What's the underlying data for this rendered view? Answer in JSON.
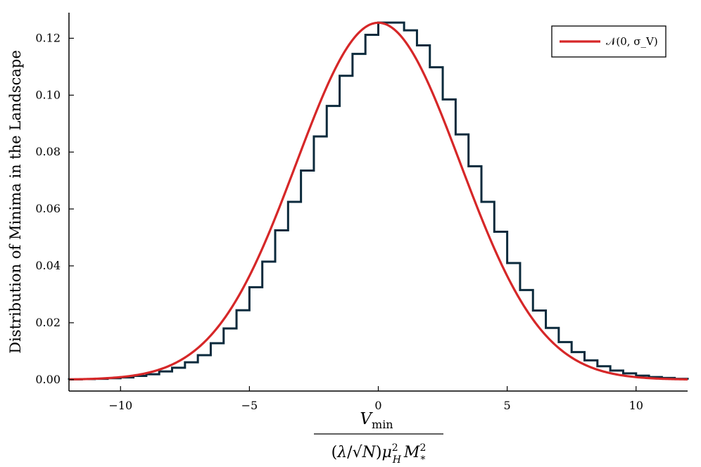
{
  "chart_data": {
    "type": "histogram",
    "title": "",
    "ylabel": "Distribution of Minima in the Landscape",
    "xlabel_numerator": "Vmin",
    "xlabel_denominator": "(λ/√N)μH² M*²",
    "xlim": [
      -12,
      12
    ],
    "ylim": [
      -0.004,
      0.129
    ],
    "x_ticks": [
      -10,
      -5,
      0,
      5,
      10
    ],
    "x_tick_labels": [
      "−10",
      "−5",
      "0",
      "5",
      "10"
    ],
    "y_ticks": [
      0.0,
      0.02,
      0.04,
      0.06,
      0.08,
      0.1,
      0.12
    ],
    "y_tick_labels": [
      "0.00",
      "0.02",
      "0.04",
      "0.06",
      "0.08",
      "0.10",
      "0.12"
    ],
    "grid": false,
    "legend_position": "top-right",
    "histogram": {
      "color": "#0b2a3c",
      "bin_edges": [
        -12,
        -11.5,
        -11,
        -10.5,
        -10,
        -9.5,
        -9,
        -8.5,
        -8,
        -7.5,
        -7,
        -6.5,
        -6,
        -5.5,
        -5,
        -4.5,
        -4,
        -3.5,
        -3,
        -2.5,
        -2,
        -1.5,
        -1,
        -0.5,
        0,
        0.5,
        1,
        1.5,
        2,
        2.5,
        3,
        3.5,
        4,
        4.5,
        5,
        5.5,
        6,
        6.5,
        7,
        7.5,
        8,
        8.5,
        9,
        9.5,
        10,
        10.5,
        11,
        11.5,
        12
      ],
      "values": [
        0.0001,
        0.0002,
        0.0003,
        0.0005,
        0.0008,
        0.0013,
        0.0019,
        0.0029,
        0.0042,
        0.0061,
        0.0086,
        0.0128,
        0.018,
        0.0244,
        0.0325,
        0.0415,
        0.0525,
        0.0625,
        0.0735,
        0.0855,
        0.0962,
        0.1068,
        0.1145,
        0.1212,
        0.1255,
        0.1255,
        0.1228,
        0.1175,
        0.1098,
        0.0985,
        0.0862,
        0.075,
        0.0625,
        0.052,
        0.041,
        0.0315,
        0.0243,
        0.0182,
        0.0132,
        0.0097,
        0.0068,
        0.0047,
        0.0032,
        0.0022,
        0.0014,
        0.0009,
        0.0006,
        0.0003
      ]
    },
    "series": [
      {
        "name": "𝒩(0, σ_V)",
        "type": "normal_pdf",
        "mu": 0,
        "sigma": 3.18,
        "color": "#d62728"
      }
    ]
  }
}
